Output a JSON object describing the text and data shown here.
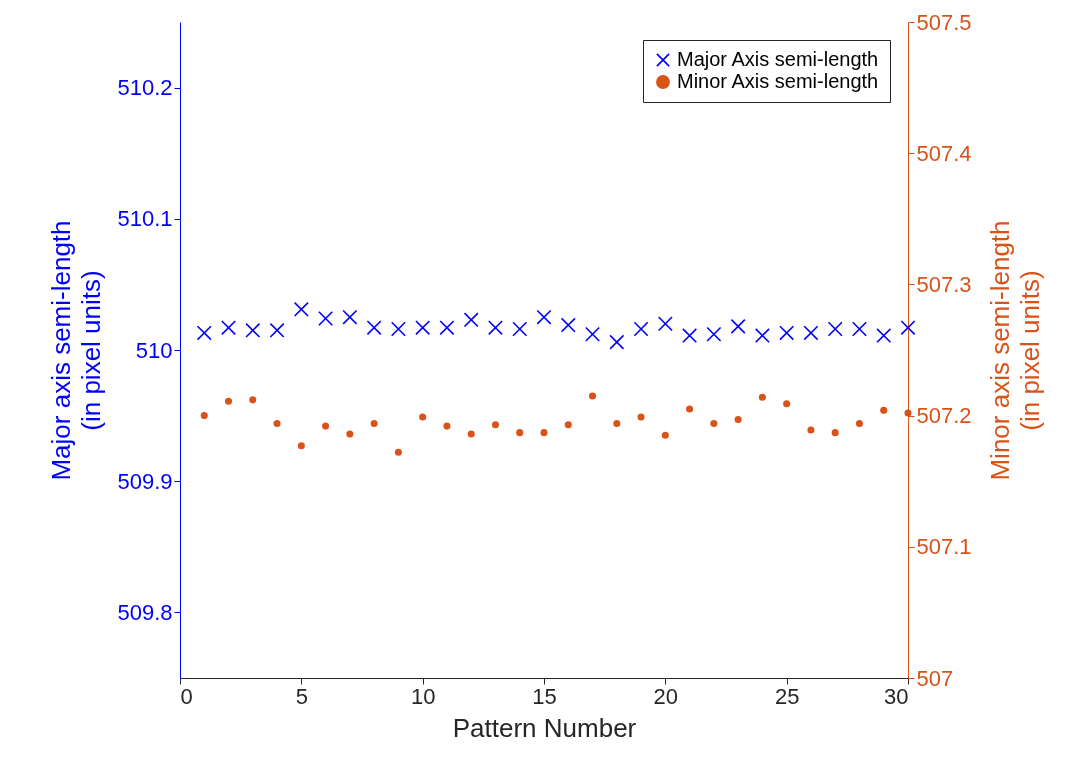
{
  "chart_data": {
    "type": "scatter",
    "xlabel": "Pattern Number",
    "ylabel": "Major axis semi-length\n(in pixel units)",
    "y2label": "Minor axis semi-length\n(in pixel units)",
    "x": [
      1,
      2,
      3,
      4,
      5,
      6,
      7,
      8,
      9,
      10,
      11,
      12,
      13,
      14,
      15,
      16,
      17,
      18,
      19,
      20,
      21,
      22,
      23,
      24,
      25,
      26,
      27,
      28,
      29,
      30
    ],
    "series": [
      {
        "name": "Major Axis semi-length",
        "color": "#0000ff",
        "marker": "cross",
        "values": [
          510.013,
          510.017,
          510.015,
          510.015,
          510.031,
          510.024,
          510.025,
          510.017,
          510.016,
          510.017,
          510.017,
          510.023,
          510.017,
          510.016,
          510.025,
          510.019,
          510.012,
          510.006,
          510.016,
          510.02,
          510.011,
          510.012,
          510.018,
          510.011,
          510.013,
          510.013,
          510.016,
          510.016,
          510.011,
          510.017
        ]
      },
      {
        "name": "Minor Axis semi-length",
        "color": "#d95319",
        "marker": "circle",
        "axis": "y2",
        "values": [
          507.2,
          507.211,
          507.212,
          507.194,
          507.177,
          507.192,
          507.186,
          507.194,
          507.172,
          507.199,
          507.192,
          507.186,
          507.193,
          507.187,
          507.187,
          507.193,
          507.215,
          507.194,
          507.199,
          507.185,
          507.205,
          507.194,
          507.197,
          507.214,
          507.209,
          507.189,
          507.187,
          507.194,
          507.204,
          507.202
        ]
      }
    ],
    "xlim": [
      0,
      30
    ],
    "xticks": [
      0,
      5,
      10,
      15,
      20,
      25,
      30
    ],
    "ylim": [
      509.75,
      510.25
    ],
    "yticks": [
      509.8,
      509.9,
      510,
      510.1,
      510.2
    ],
    "y2lim": [
      507,
      507.5
    ],
    "y2ticks": [
      507,
      507.1,
      507.2,
      507.3,
      507.4,
      507.5
    ],
    "legend": "top right",
    "grid": false
  }
}
